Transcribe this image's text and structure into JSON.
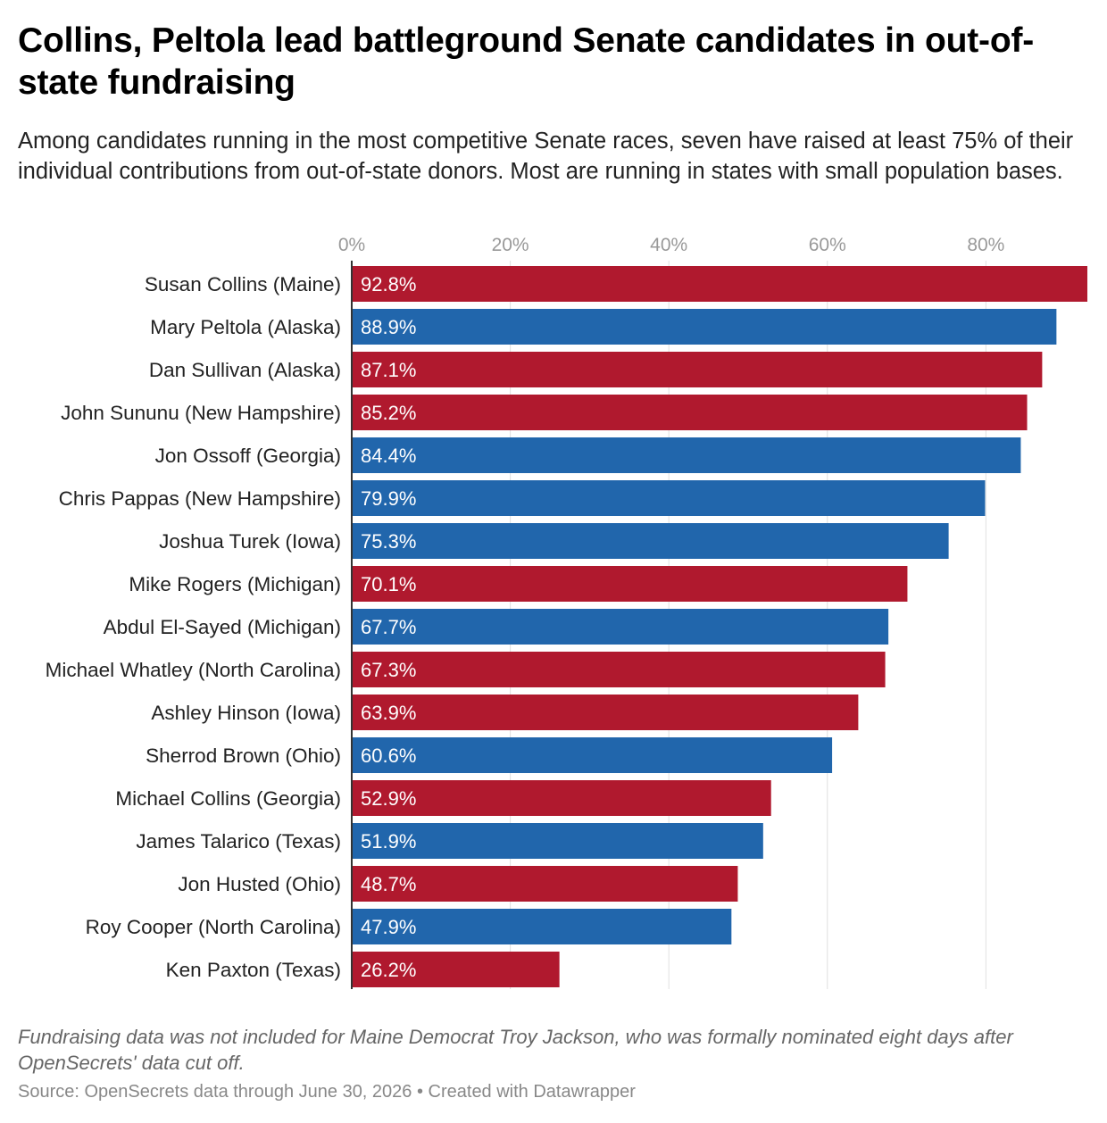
{
  "title": "Collins, Peltola lead battleground Senate candidates in out-of-state fundraising",
  "subtitle": "Among candidates running in the most competitive Senate races, seven have raised at least 75% of their individual contributions from out-of-state donors. Most are running in states with small population bases.",
  "notes": "Fundraising data was not included for Maine Democrat Troy Jackson, who was formally nominated eight days after OpenSecrets' data cut off.",
  "source": "Source: OpenSecrets data through June 30, 2026 • Created with Datawrapper",
  "colors": {
    "republican": "#b0192e",
    "democrat": "#2166ac",
    "grid": "#e0e0e0",
    "tick_label": "#999999"
  },
  "chart_data": {
    "type": "bar",
    "orientation": "horizontal",
    "xlim": [
      0,
      92.8
    ],
    "x_ticks": [
      0,
      20,
      40,
      60,
      80
    ],
    "x_tick_labels": [
      "0%",
      "20%",
      "40%",
      "60%",
      "80%"
    ],
    "grid": true,
    "categories": [
      "Susan Collins (Maine)",
      "Mary Peltola (Alaska)",
      "Dan Sullivan (Alaska)",
      "John Sununu (New Hampshire)",
      "Jon Ossoff (Georgia)",
      "Chris Pappas (New Hampshire)",
      "Joshua Turek (Iowa)",
      "Mike Rogers (Michigan)",
      "Abdul El-Sayed (Michigan)",
      "Michael Whatley (North Carolina)",
      "Ashley Hinson (Iowa)",
      "Sherrod Brown (Ohio)",
      "Michael Collins (Georgia)",
      "James Talarico (Texas)",
      "Jon Husted (Ohio)",
      "Roy Cooper (North Carolina)",
      "Ken Paxton (Texas)"
    ],
    "values": [
      92.8,
      88.9,
      87.1,
      85.2,
      84.4,
      79.9,
      75.3,
      70.1,
      67.7,
      67.3,
      63.9,
      60.6,
      52.9,
      51.9,
      48.7,
      47.9,
      26.2
    ],
    "value_labels": [
      "92.8%",
      "88.9%",
      "87.1%",
      "85.2%",
      "84.4%",
      "79.9%",
      "75.3%",
      "70.1%",
      "67.7%",
      "67.3%",
      "63.9%",
      "60.6%",
      "52.9%",
      "51.9%",
      "48.7%",
      "47.9%",
      "26.2%"
    ],
    "party": [
      "republican",
      "democrat",
      "republican",
      "republican",
      "democrat",
      "democrat",
      "democrat",
      "republican",
      "democrat",
      "republican",
      "republican",
      "democrat",
      "republican",
      "democrat",
      "republican",
      "democrat",
      "republican"
    ]
  }
}
